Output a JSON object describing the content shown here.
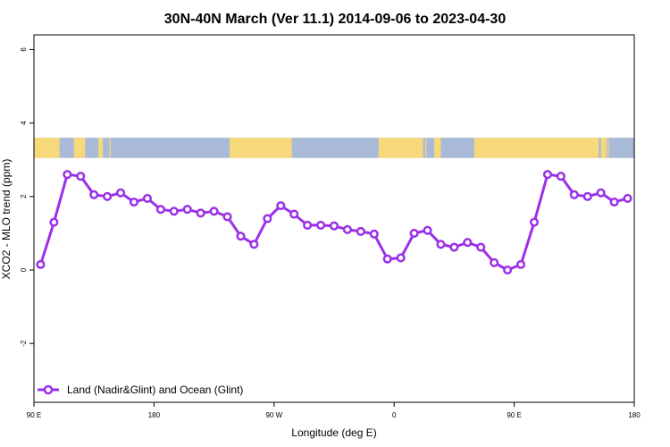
{
  "chart_data": {
    "type": "line",
    "title": "30N-40N March (Ver 11.1)   2014-09-06 to 2023-04-30",
    "xlabel": "Longitude (deg E)",
    "ylabel": "XCO2 - MLO trend (ppm)",
    "xlim": [
      -90,
      180
    ],
    "ylim": [
      -3.6,
      6.4
    ],
    "x_ticks": [
      {
        "value": -90,
        "label": "90 E"
      },
      {
        "value": -36,
        "label": "180"
      },
      {
        "value": 18,
        "label": "90 W"
      },
      {
        "value": 72,
        "label": "0"
      },
      {
        "value": 126,
        "label": "90 E"
      },
      {
        "value": 180,
        "label": "180"
      }
    ],
    "y_ticks": [
      -2,
      0,
      2,
      4,
      6
    ],
    "grid": false,
    "legend_position": "bottom-left",
    "series_color": "#9b30e8",
    "land_color": "#f7d87a",
    "ocean_color": "#a8bad8",
    "map_band": {
      "y_range": [
        3.05,
        3.6
      ],
      "land_x_ranges": [
        [
          -90,
          -78.5
        ],
        [
          -72,
          -67
        ],
        [
          -61,
          -59
        ],
        [
          -56,
          -55.5
        ],
        [
          -2,
          26
        ],
        [
          65,
          85
        ],
        [
          86,
          86.5
        ],
        [
          90,
          93
        ],
        [
          108,
          164
        ],
        [
          165,
          167.5
        ],
        [
          168,
          168.5
        ]
      ]
    },
    "series": [
      {
        "name": "Land (Nadir&Glint) and Ocean (Glint)",
        "x": [
          -87,
          -81,
          -75,
          -69,
          -63,
          -57,
          -51,
          -45,
          -39,
          -33,
          -27,
          -21,
          -15,
          -9,
          -3,
          3,
          9,
          15,
          21,
          27,
          33,
          39,
          45,
          51,
          57,
          63,
          69,
          75,
          81,
          87,
          93,
          99,
          105,
          111,
          117,
          123,
          129,
          135,
          141,
          147,
          153,
          159,
          165,
          171,
          177
        ],
        "y": [
          0.15,
          1.3,
          2.6,
          2.55,
          2.05,
          2.0,
          2.1,
          1.85,
          1.95,
          1.65,
          1.6,
          1.65,
          1.55,
          1.6,
          1.45,
          0.92,
          0.7,
          1.4,
          1.75,
          1.52,
          1.22,
          1.22,
          1.2,
          1.1,
          1.05,
          0.98,
          0.3,
          0.33,
          1.0,
          1.08,
          0.7,
          0.62,
          0.75,
          0.62,
          0.2,
          0.0,
          0.15,
          1.3,
          2.6,
          2.55,
          2.05,
          2.0,
          2.1,
          1.85,
          1.95
        ]
      }
    ]
  }
}
